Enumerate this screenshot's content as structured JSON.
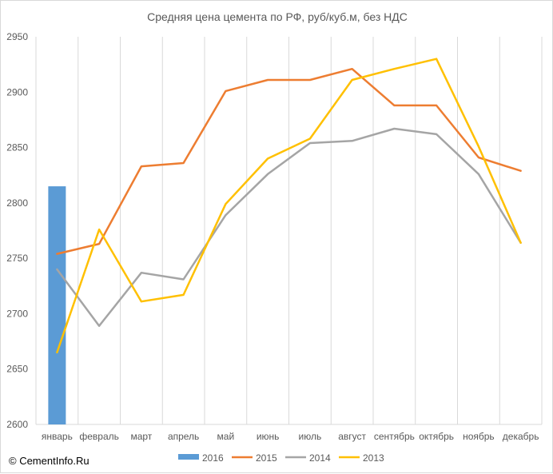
{
  "chart_data": {
    "type": "bar+line",
    "title": "Средняя цена цемента по РФ, руб/куб.м, без НДС",
    "categories": [
      "январь",
      "февраль",
      "март",
      "апрель",
      "май",
      "июнь",
      "июль",
      "август",
      "сентябрь",
      "октябрь",
      "ноябрь",
      "декабрь"
    ],
    "ylim": [
      2600,
      2950
    ],
    "yticks": [
      2600,
      2650,
      2700,
      2750,
      2800,
      2850,
      2900,
      2950
    ],
    "grid": "vertical",
    "legend_position": "bottom",
    "series": [
      {
        "name": "2016",
        "type": "bar",
        "color": "#5b9bd5",
        "values": [
          2815,
          null,
          null,
          null,
          null,
          null,
          null,
          null,
          null,
          null,
          null,
          null
        ]
      },
      {
        "name": "2015",
        "type": "line",
        "color": "#ed7d31",
        "values": [
          2754,
          2763,
          2833,
          2836,
          2901,
          2911,
          2911,
          2921,
          2888,
          2888,
          2841,
          2829
        ]
      },
      {
        "name": "2014",
        "type": "line",
        "color": "#a5a5a5",
        "values": [
          2740,
          2689,
          2737,
          2731,
          2789,
          2826,
          2854,
          2856,
          2867,
          2862,
          2826,
          2764
        ]
      },
      {
        "name": "2013",
        "type": "line",
        "color": "#ffc000",
        "values": [
          2665,
          2776,
          2711,
          2717,
          2799,
          2840,
          2858,
          2911,
          2921,
          2930,
          2851,
          2764
        ]
      }
    ]
  },
  "footer": {
    "copyright": "© CementInfo.Ru"
  }
}
